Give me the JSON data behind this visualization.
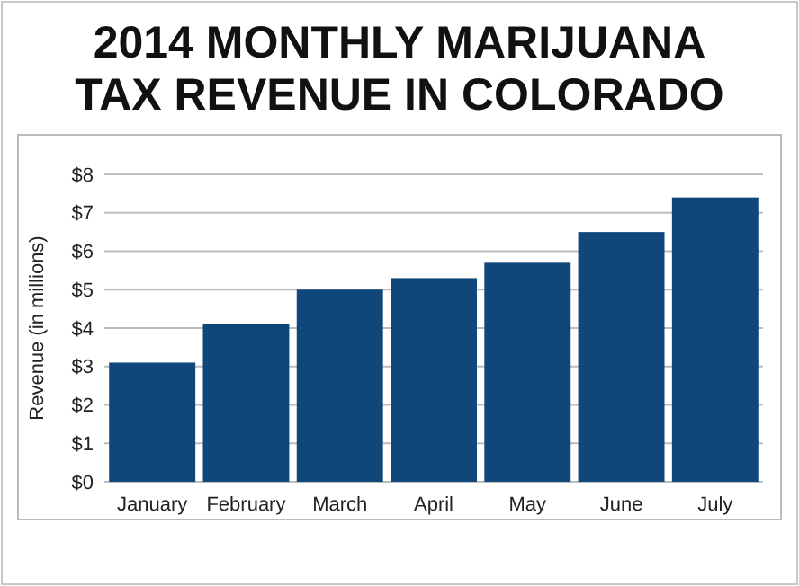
{
  "chart_data": {
    "type": "bar",
    "title": "2014 MONTHLY MARIJUANA\nTAX REVENUE IN COLORADO",
    "ylabel": "Revenue (in millions)",
    "categories": [
      "January",
      "February",
      "March",
      "April",
      "May",
      "June",
      "July"
    ],
    "values": [
      3.1,
      4.1,
      5.0,
      5.3,
      5.7,
      6.5,
      7.4
    ],
    "color": "#10477a",
    "ylim": [
      0,
      8
    ],
    "yticks": [
      {
        "value": 0,
        "label": "$0"
      },
      {
        "value": 1,
        "label": "$1"
      },
      {
        "value": 2,
        "label": "$2"
      },
      {
        "value": 3,
        "label": "$3"
      },
      {
        "value": 4,
        "label": "$4"
      },
      {
        "value": 5,
        "label": "$5"
      },
      {
        "value": 6,
        "label": "$6"
      },
      {
        "value": 7,
        "label": "$7"
      },
      {
        "value": 8,
        "label": "$8"
      }
    ],
    "grid": "y"
  }
}
